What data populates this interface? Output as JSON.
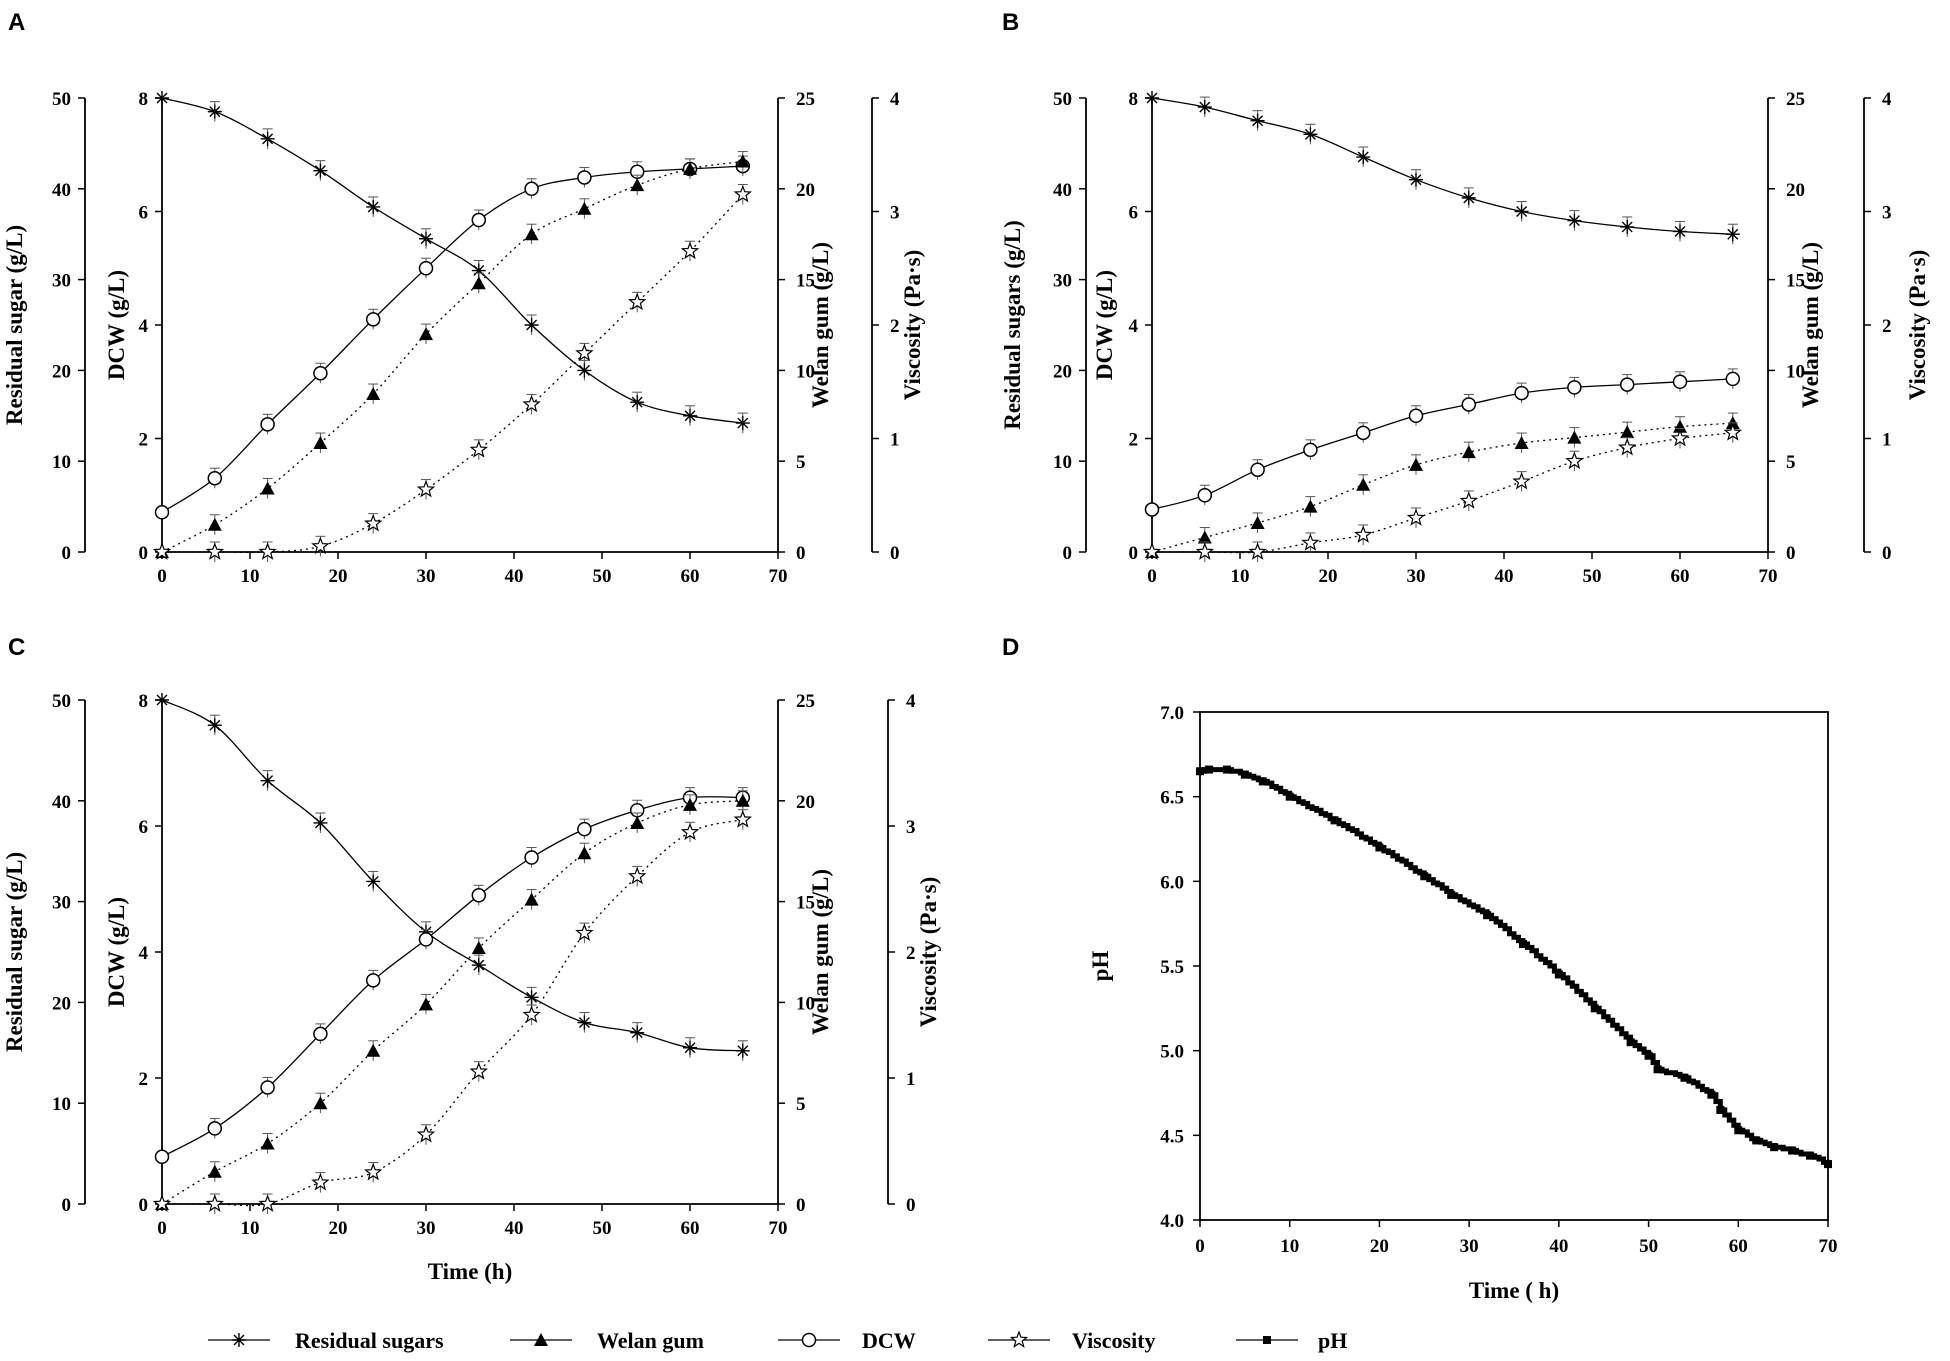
{
  "figure": {
    "panels": [
      "A",
      "B",
      "C",
      "D"
    ],
    "legend": [
      {
        "label": "Residual sugars",
        "marker": "asterisk"
      },
      {
        "label": "Welan gum",
        "marker": "filled-triangle"
      },
      {
        "label": "DCW",
        "marker": "open-circle"
      },
      {
        "label": "Viscosity",
        "marker": "open-star"
      },
      {
        "label": "pH",
        "marker": "filled-square"
      }
    ]
  },
  "chart_data": [
    {
      "panel": "A",
      "type": "line",
      "xlabel": "",
      "xlim": [
        0,
        70
      ],
      "xticks": [
        0,
        10,
        20,
        30,
        40,
        50,
        60,
        70
      ],
      "axes": [
        {
          "label": "Residual sugar  (g/L)",
          "lim": [
            0,
            50
          ],
          "ticks": [
            0,
            10,
            20,
            30,
            40,
            50
          ]
        },
        {
          "label": "DCW (g/L)",
          "lim": [
            0,
            8
          ],
          "ticks": [
            0,
            2,
            4,
            6,
            8
          ]
        },
        {
          "label": "Welan gum (g/L)",
          "lim": [
            0,
            25
          ],
          "ticks": [
            0,
            5,
            10,
            15,
            20,
            25
          ]
        },
        {
          "label": "Viscosity (Pa·s)",
          "lim": [
            0,
            4
          ],
          "ticks": [
            0,
            1,
            2,
            3,
            4
          ]
        }
      ],
      "series": [
        {
          "name": "Residual sugars",
          "axis": 0,
          "marker": "asterisk",
          "line": "solid",
          "x": [
            0,
            6,
            12,
            18,
            24,
            30,
            36,
            42,
            48,
            54,
            60,
            66
          ],
          "y": [
            50,
            48.5,
            45.5,
            42,
            38,
            34.5,
            31,
            25,
            20,
            16.5,
            15,
            14.2
          ]
        },
        {
          "name": "DCW",
          "axis": 1,
          "marker": "open-circle",
          "line": "solid",
          "x": [
            0,
            6,
            12,
            18,
            24,
            30,
            36,
            42,
            48,
            54,
            60,
            66
          ],
          "y": [
            0.7,
            1.3,
            2.25,
            3.15,
            4.1,
            5.0,
            5.85,
            6.4,
            6.6,
            6.7,
            6.75,
            6.8
          ]
        },
        {
          "name": "Welan gum",
          "axis": 2,
          "marker": "filled-triangle",
          "line": "dotted",
          "x": [
            0,
            6,
            12,
            18,
            24,
            30,
            36,
            42,
            48,
            54,
            60,
            66
          ],
          "y": [
            0,
            1.5,
            3.5,
            6,
            8.7,
            12,
            14.8,
            17.5,
            18.9,
            20.2,
            21.1,
            21.5
          ]
        },
        {
          "name": "Viscosity",
          "axis": 3,
          "marker": "open-star",
          "line": "dotted",
          "x": [
            0,
            6,
            12,
            18,
            24,
            30,
            36,
            42,
            48,
            54,
            60,
            66
          ],
          "y": [
            0,
            0,
            0,
            0.05,
            0.25,
            0.55,
            0.9,
            1.3,
            1.75,
            2.2,
            2.65,
            3.15
          ]
        }
      ]
    },
    {
      "panel": "B",
      "type": "line",
      "xlabel": "",
      "xlim": [
        0,
        70
      ],
      "xticks": [
        0,
        10,
        20,
        30,
        40,
        50,
        60,
        70
      ],
      "axes": [
        {
          "label": "Residual sugars (g/L)",
          "lim": [
            0,
            50
          ],
          "ticks": [
            0,
            10,
            20,
            30,
            40,
            50
          ]
        },
        {
          "label": "DCW (g/L)",
          "lim": [
            0,
            8
          ],
          "ticks": [
            0,
            2,
            4,
            6,
            8
          ]
        },
        {
          "label": "Welan gum (g/L)",
          "lim": [
            0,
            25
          ],
          "ticks": [
            0,
            5,
            10,
            15,
            20,
            25
          ]
        },
        {
          "label": "Viscosity (Pa·s)",
          "lim": [
            0,
            4
          ],
          "ticks": [
            0,
            1,
            2,
            3,
            4
          ]
        }
      ],
      "series": [
        {
          "name": "Residual sugars",
          "axis": 0,
          "marker": "asterisk",
          "line": "solid",
          "x": [
            0,
            6,
            12,
            18,
            24,
            30,
            36,
            42,
            48,
            54,
            60,
            66
          ],
          "y": [
            50,
            49,
            47.5,
            46,
            43.5,
            41,
            39,
            37.5,
            36.5,
            35.8,
            35.3,
            35
          ]
        },
        {
          "name": "DCW",
          "axis": 1,
          "marker": "open-circle",
          "line": "solid",
          "x": [
            0,
            6,
            12,
            18,
            24,
            30,
            36,
            42,
            48,
            54,
            60,
            66
          ],
          "y": [
            0.75,
            1.0,
            1.45,
            1.8,
            2.1,
            2.4,
            2.6,
            2.8,
            2.9,
            2.95,
            3.0,
            3.05
          ]
        },
        {
          "name": "Welan gum",
          "axis": 2,
          "marker": "filled-triangle",
          "line": "dotted",
          "x": [
            0,
            6,
            12,
            18,
            24,
            30,
            36,
            42,
            48,
            54,
            60,
            66
          ],
          "y": [
            0,
            0.8,
            1.6,
            2.5,
            3.7,
            4.8,
            5.5,
            6.0,
            6.3,
            6.6,
            6.9,
            7.1
          ]
        },
        {
          "name": "Viscosity",
          "axis": 3,
          "marker": "open-star",
          "line": "dotted",
          "x": [
            0,
            6,
            12,
            18,
            24,
            30,
            36,
            42,
            48,
            54,
            60,
            66
          ],
          "y": [
            0,
            0,
            0,
            0.08,
            0.15,
            0.3,
            0.45,
            0.62,
            0.8,
            0.92,
            1.0,
            1.05
          ]
        }
      ]
    },
    {
      "panel": "C",
      "type": "line",
      "xlabel": "Time (h)",
      "xlim": [
        0,
        70
      ],
      "xticks": [
        0,
        10,
        20,
        30,
        40,
        50,
        60,
        70
      ],
      "axes": [
        {
          "label": "Residual sugar  (g/L)",
          "lim": [
            0,
            50
          ],
          "ticks": [
            0,
            10,
            20,
            30,
            40,
            50
          ]
        },
        {
          "label": "DCW (g/L)",
          "lim": [
            0,
            8
          ],
          "ticks": [
            0,
            2,
            4,
            6,
            8
          ]
        },
        {
          "label": "Welan gum (g/L)",
          "lim": [
            0,
            25
          ],
          "ticks": [
            0,
            5,
            10,
            15,
            20,
            25
          ]
        },
        {
          "label": "Viscosity (Pa·s)",
          "lim": [
            0,
            4
          ],
          "ticks": [
            0,
            1,
            2,
            3,
            4
          ]
        }
      ],
      "series": [
        {
          "name": "Residual sugars",
          "axis": 0,
          "marker": "asterisk",
          "line": "solid",
          "x": [
            0,
            6,
            12,
            18,
            24,
            30,
            36,
            42,
            48,
            54,
            60,
            66
          ],
          "y": [
            50,
            47.5,
            42,
            37.8,
            32,
            27,
            23.7,
            20.5,
            18,
            17,
            15.5,
            15.2
          ]
        },
        {
          "name": "DCW",
          "axis": 1,
          "marker": "open-circle",
          "line": "solid",
          "x": [
            0,
            6,
            12,
            18,
            24,
            30,
            36,
            42,
            48,
            54,
            60,
            66
          ],
          "y": [
            0.75,
            1.2,
            1.85,
            2.7,
            3.55,
            4.2,
            4.9,
            5.5,
            5.95,
            6.25,
            6.45,
            6.45
          ]
        },
        {
          "name": "Welan gum",
          "axis": 2,
          "marker": "filled-triangle",
          "line": "dotted",
          "x": [
            0,
            6,
            12,
            18,
            24,
            30,
            36,
            42,
            48,
            54,
            60,
            66
          ],
          "y": [
            0,
            1.6,
            3.0,
            5.0,
            7.6,
            9.9,
            12.7,
            15.1,
            17.4,
            18.9,
            19.8,
            20.0
          ]
        },
        {
          "name": "Viscosity",
          "axis": 3,
          "marker": "open-star",
          "line": "dotted",
          "x": [
            0,
            6,
            12,
            18,
            24,
            30,
            36,
            42,
            48,
            54,
            60,
            66
          ],
          "y": [
            0,
            0,
            0,
            0.17,
            0.25,
            0.55,
            1.05,
            1.5,
            2.15,
            2.6,
            2.95,
            3.05
          ]
        }
      ]
    },
    {
      "panel": "D",
      "type": "line",
      "xlabel": "Time ( h)",
      "ylabel": "pH",
      "xlim": [
        0,
        70
      ],
      "ylim": [
        4.0,
        7.0
      ],
      "xticks": [
        0,
        10,
        20,
        30,
        40,
        50,
        60,
        70
      ],
      "yticks": [
        4.0,
        4.5,
        5.0,
        5.5,
        6.0,
        6.5,
        7.0
      ],
      "series": [
        {
          "name": "pH",
          "marker": "filled-square",
          "line": "solid",
          "x": [
            0,
            1,
            3,
            5,
            7,
            10,
            15,
            20,
            25,
            28,
            32,
            36,
            40,
            44,
            48,
            50,
            51,
            54,
            57,
            58,
            60,
            62,
            64,
            66,
            68,
            70
          ],
          "y": [
            6.65,
            6.66,
            6.66,
            6.63,
            6.59,
            6.5,
            6.36,
            6.2,
            6.03,
            5.92,
            5.8,
            5.63,
            5.45,
            5.25,
            5.05,
            4.97,
            4.89,
            4.84,
            4.74,
            4.65,
            4.53,
            4.47,
            4.43,
            4.41,
            4.38,
            4.33
          ]
        }
      ]
    }
  ]
}
